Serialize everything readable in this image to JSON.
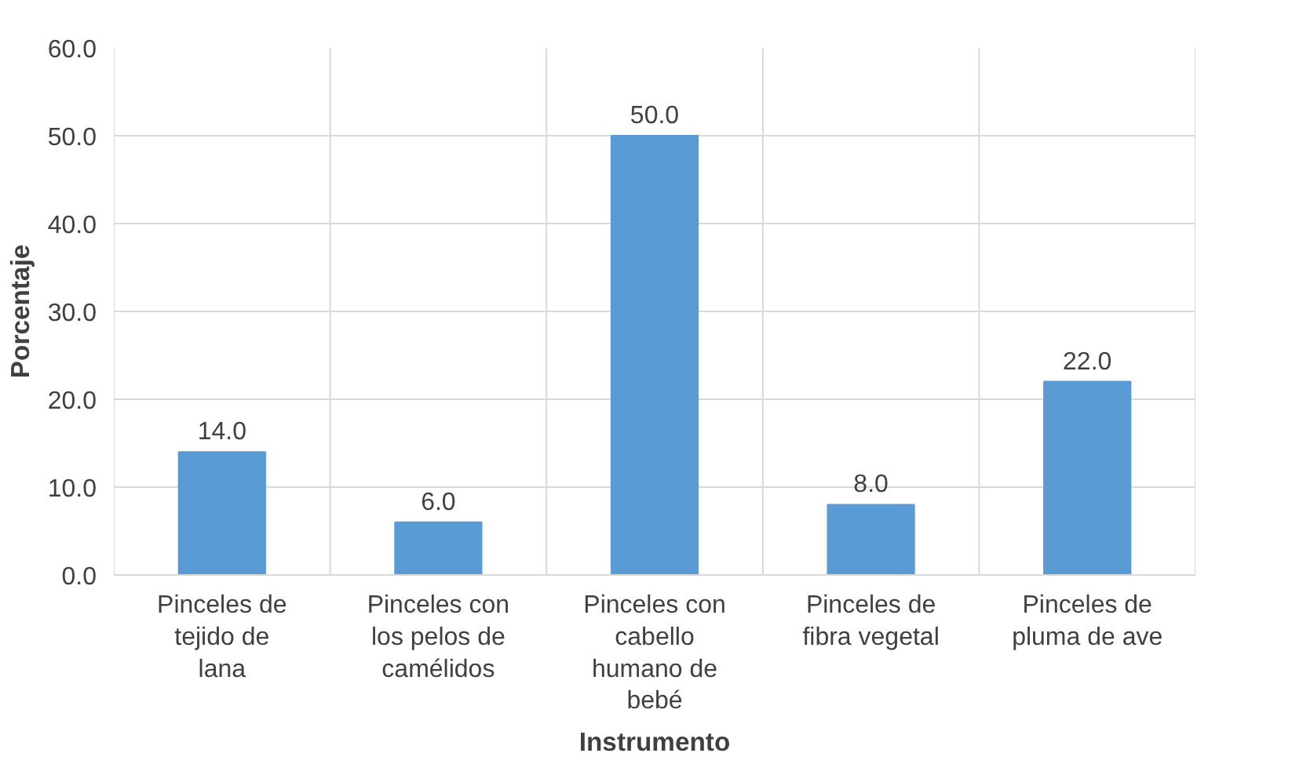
{
  "chart_data": {
    "type": "bar",
    "xlabel": "Instrumento",
    "ylabel": "Porcentaje",
    "categories": [
      "Pinceles de tejido de lana",
      "Pinceles con los pelos de camélidos",
      "Pinceles con cabello humano de bebé",
      "Pinceles de fibra vegetal",
      "Pinceles de pluma de ave"
    ],
    "values": [
      14,
      6,
      50,
      8,
      22
    ],
    "value_labels": [
      "14.0",
      "6.0",
      "50.0",
      "8.0",
      "22.0"
    ],
    "color": "#5b9bd5",
    "ylim": [
      0,
      60
    ],
    "yticks": [
      {
        "value": 0,
        "label": "0.0"
      },
      {
        "value": 10,
        "label": "10.0"
      },
      {
        "value": 20,
        "label": "20.0"
      },
      {
        "value": 30,
        "label": "30.0"
      },
      {
        "value": 40,
        "label": "40.0"
      },
      {
        "value": 50,
        "label": "50.0"
      },
      {
        "value": 60,
        "label": "60.0"
      }
    ],
    "grid": true
  }
}
